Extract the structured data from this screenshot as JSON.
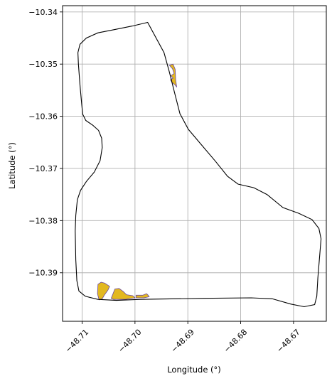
{
  "x_axis": {
    "label": "Longitude (°)",
    "ticks": [
      {
        "value": -48.71,
        "label": "−48.71"
      },
      {
        "value": -48.7,
        "label": "−48.70"
      },
      {
        "value": -48.69,
        "label": "−48.69"
      },
      {
        "value": -48.68,
        "label": "−48.68"
      },
      {
        "value": -48.67,
        "label": "−48.67"
      }
    ],
    "range": [
      -48.7137,
      -48.6638
    ]
  },
  "y_axis": {
    "label": "Latitude (°)",
    "ticks": [
      {
        "value": -10.34,
        "label": "−10.34"
      },
      {
        "value": -10.35,
        "label": "−10.35"
      },
      {
        "value": -10.36,
        "label": "−10.36"
      },
      {
        "value": -10.37,
        "label": "−10.37"
      },
      {
        "value": -10.38,
        "label": "−10.38"
      },
      {
        "value": -10.39,
        "label": "−10.39"
      }
    ],
    "range": [
      -10.3993,
      -10.3388
    ]
  },
  "grid": true,
  "colors": {
    "boundary": "#000000",
    "patch_fill": "#e2b820",
    "patch_edge": "#6b4aa0",
    "grid": "#b0b0b0"
  },
  "boundary": [
    [
      -48.6976,
      -10.342
    ],
    [
      -48.7005,
      -10.3427
    ],
    [
      -48.704,
      -10.3434
    ],
    [
      -48.707,
      -10.344
    ],
    [
      -48.7092,
      -10.345
    ],
    [
      -48.7104,
      -10.3462
    ],
    [
      -48.7108,
      -10.3478
    ],
    [
      -48.7107,
      -10.35
    ],
    [
      -48.7104,
      -10.354
    ],
    [
      -48.7101,
      -10.3575
    ],
    [
      -48.7099,
      -10.3596
    ],
    [
      -48.7093,
      -10.3608
    ],
    [
      -48.708,
      -10.3617
    ],
    [
      -48.7069,
      -10.3627
    ],
    [
      -48.7063,
      -10.3642
    ],
    [
      -48.7062,
      -10.366
    ],
    [
      -48.7066,
      -10.3685
    ],
    [
      -48.7077,
      -10.3707
    ],
    [
      -48.7092,
      -10.3725
    ],
    [
      -48.7103,
      -10.3742
    ],
    [
      -48.7109,
      -10.376
    ],
    [
      -48.7112,
      -10.379
    ],
    [
      -48.7113,
      -10.382
    ],
    [
      -48.7112,
      -10.3875
    ],
    [
      -48.711,
      -10.3915
    ],
    [
      -48.7106,
      -10.3935
    ],
    [
      -48.7094,
      -10.3945
    ],
    [
      -48.707,
      -10.3951
    ],
    [
      -48.7035,
      -10.3953
    ],
    [
      -48.699,
      -10.3951
    ],
    [
      -48.687,
      -10.3949
    ],
    [
      -48.678,
      -10.3948
    ],
    [
      -48.674,
      -10.395
    ],
    [
      -48.6705,
      -10.396
    ],
    [
      -48.668,
      -10.3965
    ],
    [
      -48.666,
      -10.3961
    ],
    [
      -48.6656,
      -10.3945
    ],
    [
      -48.6654,
      -10.391
    ],
    [
      -48.665,
      -10.386
    ],
    [
      -48.6648,
      -10.3835
    ],
    [
      -48.6652,
      -10.3815
    ],
    [
      -48.6665,
      -10.3798
    ],
    [
      -48.669,
      -10.3786
    ],
    [
      -48.672,
      -10.3775
    ],
    [
      -48.675,
      -10.375
    ],
    [
      -48.6775,
      -10.3737
    ],
    [
      -48.6805,
      -10.373
    ],
    [
      -48.6825,
      -10.3715
    ],
    [
      -48.6848,
      -10.3686
    ],
    [
      -48.6874,
      -10.3655
    ],
    [
      -48.6899,
      -10.3625
    ],
    [
      -48.6915,
      -10.3595
    ],
    [
      -48.6925,
      -10.3555
    ],
    [
      -48.6935,
      -10.3515
    ],
    [
      -48.6945,
      -10.3478
    ],
    [
      -48.6976,
      -10.342
    ]
  ],
  "patches": [
    [
      [
        -48.6935,
        -10.3502
      ],
      [
        -48.6929,
        -10.3509
      ],
      [
        -48.6926,
        -10.3518
      ],
      [
        -48.6932,
        -10.3522
      ],
      [
        -48.6928,
        -10.3527
      ],
      [
        -48.6933,
        -10.353
      ],
      [
        -48.693,
        -10.3535
      ],
      [
        -48.6925,
        -10.3539
      ],
      [
        -48.6921,
        -10.3544
      ],
      [
        -48.6923,
        -10.353
      ],
      [
        -48.6924,
        -10.351
      ],
      [
        -48.6928,
        -10.35
      ],
      [
        -48.6935,
        -10.3502
      ]
    ],
    [
      [
        -48.707,
        -10.3922
      ],
      [
        -48.7064,
        -10.3918
      ],
      [
        -48.7057,
        -10.392
      ],
      [
        -48.7048,
        -10.3926
      ],
      [
        -48.7051,
        -10.3933
      ],
      [
        -48.7058,
        -10.3943
      ],
      [
        -48.7062,
        -10.395
      ],
      [
        -48.7068,
        -10.3952
      ],
      [
        -48.7071,
        -10.394
      ],
      [
        -48.707,
        -10.3922
      ]
    ],
    [
      [
        -48.7038,
        -10.3931
      ],
      [
        -48.703,
        -10.393
      ],
      [
        -48.7022,
        -10.3936
      ],
      [
        -48.7016,
        -10.3942
      ],
      [
        -48.7004,
        -10.3944
      ],
      [
        -48.7,
        -10.3948
      ],
      [
        -48.7018,
        -10.3951
      ],
      [
        -48.704,
        -10.3951
      ],
      [
        -48.7045,
        -10.3949
      ],
      [
        -48.7038,
        -10.3931
      ]
    ],
    [
      [
        -48.6998,
        -10.3943
      ],
      [
        -48.6985,
        -10.3943
      ],
      [
        -48.6978,
        -10.394
      ],
      [
        -48.6975,
        -10.3943
      ],
      [
        -48.6973,
        -10.3946
      ],
      [
        -48.6983,
        -10.3948
      ],
      [
        -48.6998,
        -10.3948
      ],
      [
        -48.6998,
        -10.3943
      ]
    ]
  ]
}
